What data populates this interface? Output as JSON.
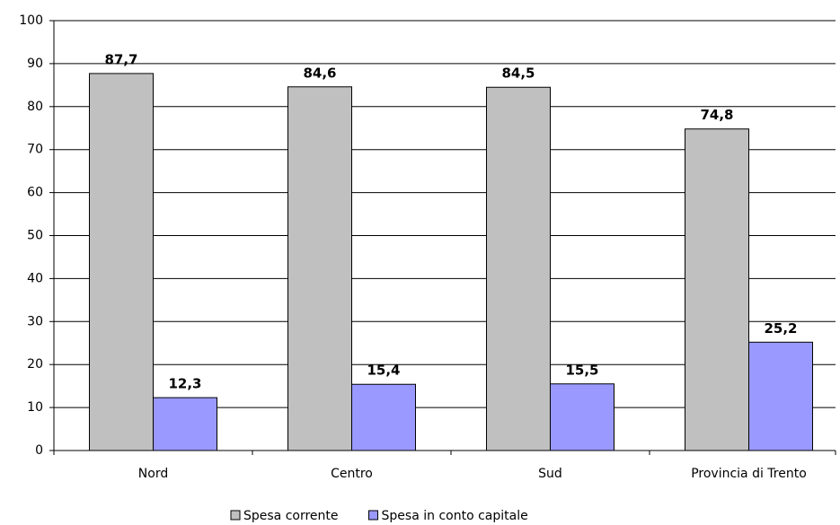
{
  "chart_data": {
    "type": "bar",
    "categories": [
      "Nord",
      "Centro",
      "Sud",
      "Provincia di Trento"
    ],
    "series": [
      {
        "name": "Spesa corrente",
        "color": "#c0c0c0",
        "values": [
          87.7,
          84.6,
          84.5,
          74.8
        ],
        "value_labels": [
          "87,7",
          "84,6",
          "84,5",
          "74,8"
        ]
      },
      {
        "name": "Spesa in conto capitale",
        "color": "#9999ff",
        "values": [
          12.3,
          15.4,
          15.5,
          25.2
        ],
        "value_labels": [
          "12,3",
          "15,4",
          "15,5",
          "25,2"
        ]
      }
    ],
    "ylim": [
      0,
      100
    ],
    "yticks": [
      0,
      10,
      20,
      30,
      40,
      50,
      60,
      70,
      80,
      90,
      100
    ],
    "grid": true,
    "legend": "bottom"
  }
}
